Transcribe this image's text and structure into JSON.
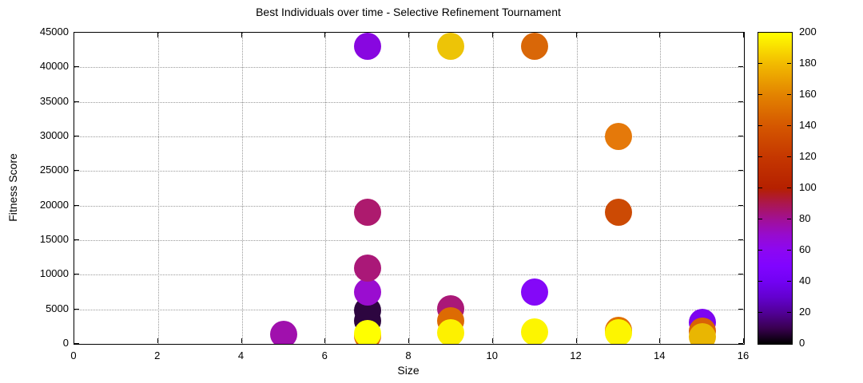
{
  "title": "Best Individuals over time - Selective Refinement Tournament",
  "chart_data": {
    "type": "scatter",
    "title": "Best Individuals over time - Selective Refinement Tournament",
    "xlabel": "Size",
    "ylabel": "Fitness Score",
    "xlim": [
      0,
      16
    ],
    "ylim": [
      0,
      45000
    ],
    "x_ticks": [
      0,
      2,
      4,
      6,
      8,
      10,
      12,
      14,
      16
    ],
    "y_ticks": [
      0,
      5000,
      10000,
      15000,
      20000,
      25000,
      30000,
      35000,
      40000,
      45000
    ],
    "grid": true,
    "legend_position": "none",
    "colorbar": {
      "min": 0,
      "max": 200,
      "ticks": [
        0,
        20,
        40,
        60,
        80,
        100,
        120,
        140,
        160,
        180,
        200
      ],
      "gradient_stops": [
        {
          "v": 0,
          "color": "#000000"
        },
        {
          "v": 10,
          "color": "#390050"
        },
        {
          "v": 20,
          "color": "#510096"
        },
        {
          "v": 30,
          "color": "#6301cf"
        },
        {
          "v": 40,
          "color": "#7202f3"
        },
        {
          "v": 50,
          "color": "#8004ff"
        },
        {
          "v": 60,
          "color": "#8c07f3"
        },
        {
          "v": 70,
          "color": "#970bcf"
        },
        {
          "v": 80,
          "color": "#a11096"
        },
        {
          "v": 90,
          "color": "#ab1750"
        },
        {
          "v": 100,
          "color": "#b52000"
        },
        {
          "v": 120,
          "color": "#c53700"
        },
        {
          "v": 140,
          "color": "#d55700"
        },
        {
          "v": 160,
          "color": "#e38300"
        },
        {
          "v": 180,
          "color": "#f2ba00"
        },
        {
          "v": 200,
          "color": "#ffff00"
        }
      ]
    },
    "points": [
      {
        "x": 5,
        "y": 1400,
        "value": 75,
        "color": "#a010ad"
      },
      {
        "x": 7,
        "y": 43000,
        "value": 62,
        "color": "#8807e0"
      },
      {
        "x": 7,
        "y": 19000,
        "value": 87,
        "color": "#ad1a6e"
      },
      {
        "x": 7,
        "y": 11000,
        "value": 85,
        "color": "#aa1878"
      },
      {
        "x": 7,
        "y": 7500,
        "value": 68,
        "color": "#9a0dd0"
      },
      {
        "x": 7,
        "y": 4850,
        "value": 8,
        "color": "#2d0640"
      },
      {
        "x": 7,
        "y": 3300,
        "value": 8,
        "color": "#2d0640"
      },
      {
        "x": 7,
        "y": 1100,
        "value": 150,
        "color": "#e06800"
      },
      {
        "x": 7,
        "y": 1500,
        "value": 200,
        "color": "#ffff00"
      },
      {
        "x": 9,
        "y": 43000,
        "value": 183,
        "color": "#edc407"
      },
      {
        "x": 9,
        "y": 5100,
        "value": 85,
        "color": "#aa1878"
      },
      {
        "x": 9,
        "y": 3400,
        "value": 152,
        "color": "#dd6b03"
      },
      {
        "x": 9,
        "y": 1600,
        "value": 198,
        "color": "#fdf100"
      },
      {
        "x": 11,
        "y": 43000,
        "value": 148,
        "color": "#d96708"
      },
      {
        "x": 11,
        "y": 7500,
        "value": 57,
        "color": "#8408f8"
      },
      {
        "x": 11,
        "y": 1700,
        "value": 199,
        "color": "#fdf500"
      },
      {
        "x": 13,
        "y": 30000,
        "value": 160,
        "color": "#e5790a"
      },
      {
        "x": 13,
        "y": 19000,
        "value": 128,
        "color": "#cc4a04"
      },
      {
        "x": 13,
        "y": 2000,
        "value": 152,
        "color": "#e07000"
      },
      {
        "x": 13,
        "y": 1600,
        "value": 199,
        "color": "#fdf500"
      },
      {
        "x": 15,
        "y": 3100,
        "value": 52,
        "color": "#7d05f0"
      },
      {
        "x": 15,
        "y": 1900,
        "value": 145,
        "color": "#d96205"
      },
      {
        "x": 15,
        "y": 1000,
        "value": 178,
        "color": "#e9b602"
      }
    ],
    "point_radius_px": 17
  }
}
